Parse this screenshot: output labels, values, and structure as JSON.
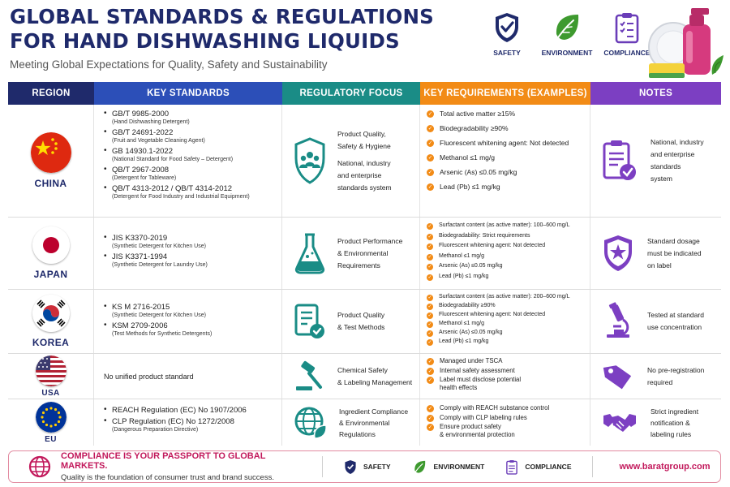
{
  "header": {
    "title_line1": "GLOBAL STANDARDS & REGULATIONS",
    "title_line2": "FOR HAND DISHWASHING LIQUIDS",
    "subtitle": "Meeting Global Expectations for Quality, Safety and Sustainability",
    "badges": [
      {
        "label": "SAFETY",
        "icon": "shield-check-icon",
        "color": "#1f2a6b"
      },
      {
        "label": "ENVIRONMENT",
        "icon": "leaf-icon",
        "color": "#3e9a2f"
      },
      {
        "label": "COMPLIANCE",
        "icon": "clipboard-check-icon",
        "color": "#6a3db8"
      }
    ]
  },
  "table": {
    "headers": [
      {
        "label": "REGION",
        "color": "#1f2a6b"
      },
      {
        "label": "KEY STANDARDS",
        "color": "#2c4fb8"
      },
      {
        "label": "REGULATORY FOCUS",
        "color": "#1a8c86"
      },
      {
        "label": "KEY REQUIREMENTS (EXAMPLES)",
        "color": "#f28b16"
      },
      {
        "label": "NOTES",
        "color": "#7c3fc2"
      }
    ],
    "rows": [
      {
        "region": "CHINA",
        "standards": [
          {
            "code": "GB/T 9985-2000",
            "desc": "(Hand Dishwashing Detergent)"
          },
          {
            "code": "GB/T 24691-2022",
            "desc": "(Fruit and Vegetable Cleaning Agent)"
          },
          {
            "code": "GB 14930.1-2022",
            "desc": "(National Standard for Food Safety – Detergent)"
          },
          {
            "code": "QB/T 2967-2008",
            "desc": "(Detergent for Tableware)"
          },
          {
            "code": "QB/T 4313-2012 / QB/T 4314-2012",
            "desc": "(Detergent for Food Industry and Industrial Equipment)"
          }
        ],
        "focus": [
          "Product Quality,\nSafety & Hygiene",
          "National, industry\nand enterprise\nstandards system"
        ],
        "requirements": [
          "Total active matter ≥15%",
          "Biodegradability ≥90%",
          "Fluorescent whitening agent: Not detected",
          "Methanol ≤1 mg/g",
          "Arsenic (As)  ≤0.05 mg/kg",
          "Lead (Pb)  ≤1 mg/kg"
        ],
        "notes": "National, industry\nand enterprise\nstandards\nsystem"
      },
      {
        "region": "JAPAN",
        "standards": [
          {
            "code": "JIS K3370-2019",
            "desc": "(Synthetic Detergent for Kitchen Use)"
          },
          {
            "code": "JIS K3371-1994",
            "desc": "(Synthetic Detergent for Laundry Use)"
          }
        ],
        "focus": [
          "Product Performance\n& Environmental\nRequirements"
        ],
        "requirements": [
          "Surfactant content (as active matter): 100–600 mg/L",
          "Biodegradability: Strict requirements",
          "Fluorescent whitening agent: Not detected",
          "Methanol  ≤1 mg/g",
          "Arsenic (As)  ≤0.05 mg/kg",
          "Lead (Pb)  ≤1 mg/kg"
        ],
        "notes": "Standard dosage\nmust be indicated\non label"
      },
      {
        "region": "KOREA",
        "standards": [
          {
            "code": "KS M 2716-2015",
            "desc": "(Synthetic Detergent for Kitchen Use)"
          },
          {
            "code": "KSM 2709-2006",
            "desc": "(Test Methods for Synthetic Detergents)"
          }
        ],
        "focus": [
          "Product Quality\n& Test Methods"
        ],
        "requirements": [
          "Surfactant content (as active matter): 200–600 mg/L",
          "Biodegradability ≥90%",
          "Fluorescent whitening agent: Not detected",
          "Methanol  ≤1 mg/g",
          "Arsenic (As)  ≤0.05 mg/kg",
          "Lead (Pb)  ≤1 mg/kg"
        ],
        "notes": "Tested at standard\nuse concentration"
      },
      {
        "region": "USA",
        "standards_text": "No unified product standard",
        "focus": [
          "Chemical Safety\n& Labeling Management"
        ],
        "requirements": [
          "Managed under TSCA",
          "Internal safety assessment",
          "Label must disclose potential\nhealth effects"
        ],
        "notes": "No pre-registration\nrequired"
      },
      {
        "region": "EU",
        "standards": [
          {
            "code": "REACH Regulation (EC) No 1907/2006",
            "desc": ""
          },
          {
            "code": "CLP Regulation (EC) No 1272/2008",
            "desc": "(Dangerous Preparation Directive)"
          }
        ],
        "focus": [
          "Ingredient Compliance\n& Environmental\nRegulations"
        ],
        "requirements": [
          "Comply with REACH substance control",
          "Comply with CLP labeling rules",
          "Ensure product safety\n& environmental protection"
        ],
        "notes": "Strict ingredient\nnotification &\nlabeling rules"
      }
    ]
  },
  "footer": {
    "headline": "COMPLIANCE IS YOUR PASSPORT TO GLOBAL MARKETS.",
    "subline": "Quality is the foundation of consumer trust and brand success.",
    "items": [
      "SAFETY",
      "ENVIRONMENT",
      "COMPLIANCE"
    ],
    "url": "www.baratgroup.com"
  }
}
